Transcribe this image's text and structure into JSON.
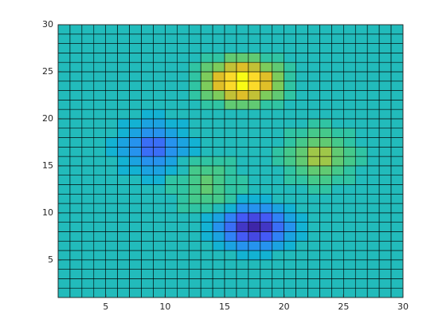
{
  "chart_data": {
    "type": "pcolor",
    "x": [
      1,
      2,
      3,
      4,
      5,
      6,
      7,
      8,
      9,
      10,
      11,
      12,
      13,
      14,
      15,
      16,
      17,
      18,
      19,
      20,
      21,
      22,
      23,
      24,
      25,
      26,
      27,
      28,
      29,
      30
    ],
    "y": [
      1,
      2,
      3,
      4,
      5,
      6,
      7,
      8,
      9,
      10,
      11,
      12,
      13,
      14,
      15,
      16,
      17,
      18,
      19,
      20,
      21,
      22,
      23,
      24,
      25,
      26,
      27,
      28,
      29,
      30
    ],
    "z": [
      [
        0,
        0,
        0,
        0,
        0,
        0,
        0,
        0,
        0,
        0,
        0,
        0,
        0,
        0,
        0,
        0,
        0,
        0,
        0,
        0,
        0,
        0,
        0,
        0,
        0,
        0,
        0,
        0,
        0
      ],
      [
        0,
        0,
        0,
        0,
        0,
        0,
        0,
        0,
        0,
        0,
        0,
        0,
        0,
        0,
        0,
        0,
        0,
        0,
        0,
        0,
        0,
        0,
        0,
        0,
        0,
        0,
        0,
        0,
        0
      ],
      [
        0,
        0,
        0,
        0,
        0,
        0,
        0,
        0,
        0,
        0,
        0,
        0,
        0,
        0,
        0,
        0,
        0,
        0,
        0,
        0,
        0,
        0,
        0,
        0,
        0,
        0,
        0,
        0,
        0
      ],
      [
        0,
        0,
        0,
        0,
        0,
        0,
        0,
        0,
        0,
        0,
        0,
        0,
        0,
        0,
        0,
        0,
        0,
        0,
        0,
        0,
        0,
        0,
        0,
        0,
        0,
        0,
        0,
        0,
        0
      ],
      [
        0,
        0,
        0,
        0,
        0,
        0,
        0,
        0,
        0,
        0,
        0,
        0,
        0,
        0,
        0,
        -1,
        -1,
        -1,
        0,
        0,
        0,
        0,
        0,
        0,
        0,
        0,
        0,
        0,
        0
      ],
      [
        0,
        0,
        0,
        0,
        0,
        0,
        0,
        0,
        0,
        0,
        0,
        0,
        0,
        -1,
        -2,
        -3,
        -3,
        -3,
        -2,
        -1,
        0,
        0,
        0,
        0,
        0,
        0,
        0,
        0,
        0
      ],
      [
        0,
        0,
        0,
        0,
        0,
        0,
        0,
        0,
        0,
        0,
        0,
        0,
        -1,
        -2,
        -4,
        -6,
        -7,
        -6,
        -4,
        -2,
        -1,
        0,
        0,
        0,
        0,
        0,
        0,
        0,
        0
      ],
      [
        0,
        0,
        0,
        0,
        0,
        0,
        0,
        0,
        0,
        0,
        0,
        0,
        -1,
        -3,
        -5,
        -8,
        -9,
        -8,
        -5,
        -3,
        -1,
        0,
        0,
        0,
        0,
        0,
        0,
        0,
        0
      ],
      [
        0,
        0,
        0,
        0,
        0,
        0,
        0,
        0,
        0,
        0,
        0,
        0,
        -1,
        -2,
        -4,
        -6,
        -7,
        -6,
        -4,
        -2,
        -1,
        0,
        0,
        0,
        0,
        0,
        0,
        0,
        0
      ],
      [
        0,
        0,
        0,
        0,
        0,
        0,
        0,
        0,
        0,
        0,
        1,
        1,
        1,
        0,
        -1,
        -3,
        -3,
        -3,
        -2,
        -1,
        0,
        0,
        0,
        0,
        0,
        0,
        0,
        0,
        0
      ],
      [
        0,
        0,
        0,
        0,
        0,
        0,
        0,
        0,
        0,
        0,
        1,
        2,
        2,
        2,
        1,
        -1,
        -1,
        -1,
        0,
        0,
        0,
        0,
        0,
        0,
        0,
        0,
        0,
        0,
        0
      ],
      [
        0,
        0,
        0,
        0,
        0,
        0,
        0,
        0,
        0,
        1,
        1,
        2,
        3,
        2,
        1,
        1,
        0,
        0,
        0,
        0,
        0,
        1,
        1,
        0,
        0,
        0,
        0,
        0,
        0
      ],
      [
        0,
        0,
        0,
        0,
        0,
        0,
        0,
        -1,
        -1,
        1,
        1,
        2,
        3,
        2,
        1,
        1,
        0,
        0,
        0,
        1,
        1,
        2,
        2,
        1,
        1,
        0,
        0,
        0,
        0
      ],
      [
        0,
        0,
        0,
        0,
        0,
        -1,
        -1,
        -2,
        -2,
        -1,
        0,
        2,
        2,
        2,
        1,
        0,
        0,
        0,
        0,
        1,
        2,
        3,
        3,
        2,
        1,
        0,
        0,
        0,
        0
      ],
      [
        0,
        0,
        0,
        0,
        0,
        -1,
        -2,
        -3,
        -3,
        -2,
        0,
        1,
        1,
        1,
        1,
        0,
        0,
        0,
        1,
        2,
        3,
        5,
        5,
        3,
        2,
        1,
        0,
        0,
        0
      ],
      [
        0,
        0,
        0,
        0,
        -1,
        -2,
        -3,
        -5,
        -5,
        -3,
        -2,
        -1,
        0,
        0,
        0,
        0,
        0,
        0,
        1,
        2,
        3,
        5,
        5,
        3,
        2,
        1,
        0,
        0,
        0
      ],
      [
        0,
        0,
        0,
        0,
        -1,
        -2,
        -3,
        -5,
        -5,
        -3,
        -2,
        -1,
        0,
        0,
        0,
        0,
        0,
        0,
        0,
        1,
        2,
        3,
        3,
        2,
        1,
        0,
        0,
        0,
        0
      ],
      [
        0,
        0,
        0,
        0,
        0,
        -1,
        -2,
        -3,
        -3,
        -2,
        -1,
        0,
        0,
        0,
        0,
        0,
        0,
        0,
        0,
        1,
        1,
        2,
        2,
        1,
        1,
        0,
        0,
        0,
        0
      ],
      [
        0,
        0,
        0,
        0,
        0,
        -1,
        -1,
        -2,
        -2,
        -1,
        -1,
        0,
        0,
        0,
        0,
        0,
        0,
        0,
        0,
        0,
        0,
        1,
        1,
        0,
        0,
        0,
        0,
        0,
        0
      ],
      [
        0,
        0,
        0,
        0,
        0,
        0,
        0,
        -1,
        -1,
        0,
        0,
        0,
        0,
        0,
        0,
        0,
        0,
        0,
        0,
        0,
        0,
        0,
        0,
        0,
        0,
        0,
        0,
        0,
        0
      ],
      [
        0,
        0,
        0,
        0,
        0,
        0,
        0,
        0,
        0,
        0,
        0,
        0,
        1,
        1,
        3,
        3,
        3,
        1,
        1,
        0,
        0,
        0,
        0,
        0,
        0,
        0,
        0,
        0,
        0
      ],
      [
        0,
        0,
        0,
        0,
        0,
        0,
        0,
        0,
        0,
        0,
        0,
        1,
        3,
        4,
        6,
        7,
        6,
        4,
        3,
        1,
        0,
        0,
        0,
        0,
        0,
        0,
        0,
        0,
        0
      ],
      [
        0,
        0,
        0,
        0,
        0,
        0,
        0,
        0,
        0,
        0,
        0,
        1,
        4,
        7,
        10,
        12,
        10,
        7,
        4,
        1,
        0,
        0,
        0,
        0,
        0,
        0,
        0,
        0,
        0
      ],
      [
        0,
        0,
        0,
        0,
        0,
        0,
        0,
        0,
        0,
        0,
        0,
        1,
        4,
        7,
        10,
        12,
        10,
        7,
        4,
        1,
        0,
        0,
        0,
        0,
        0,
        0,
        0,
        0,
        0
      ],
      [
        0,
        0,
        0,
        0,
        0,
        0,
        0,
        0,
        0,
        0,
        0,
        1,
        3,
        4,
        6,
        7,
        6,
        4,
        3,
        1,
        0,
        0,
        0,
        0,
        0,
        0,
        0,
        0,
        0
      ],
      [
        0,
        0,
        0,
        0,
        0,
        0,
        0,
        0,
        0,
        0,
        0,
        0,
        1,
        1,
        3,
        3,
        3,
        1,
        1,
        0,
        0,
        0,
        0,
        0,
        0,
        0,
        0,
        0,
        0
      ],
      [
        0,
        0,
        0,
        0,
        0,
        0,
        0,
        0,
        0,
        0,
        0,
        0,
        0,
        0,
        0,
        0,
        0,
        0,
        0,
        0,
        0,
        0,
        0,
        0,
        0,
        0,
        0,
        0,
        0
      ],
      [
        0,
        0,
        0,
        0,
        0,
        0,
        0,
        0,
        0,
        0,
        0,
        0,
        0,
        0,
        0,
        0,
        0,
        0,
        0,
        0,
        0,
        0,
        0,
        0,
        0,
        0,
        0,
        0,
        0
      ],
      [
        0,
        0,
        0,
        0,
        0,
        0,
        0,
        0,
        0,
        0,
        0,
        0,
        0,
        0,
        0,
        0,
        0,
        0,
        0,
        0,
        0,
        0,
        0,
        0,
        0,
        0,
        0,
        0,
        0
      ]
    ],
    "xlim": [
      1,
      30
    ],
    "ylim": [
      1,
      30
    ],
    "xticks": [
      5,
      10,
      15,
      20,
      25,
      30
    ],
    "yticks": [
      5,
      10,
      15,
      20,
      25,
      30
    ],
    "colormap": "parula",
    "edgecolor": "#000000"
  }
}
